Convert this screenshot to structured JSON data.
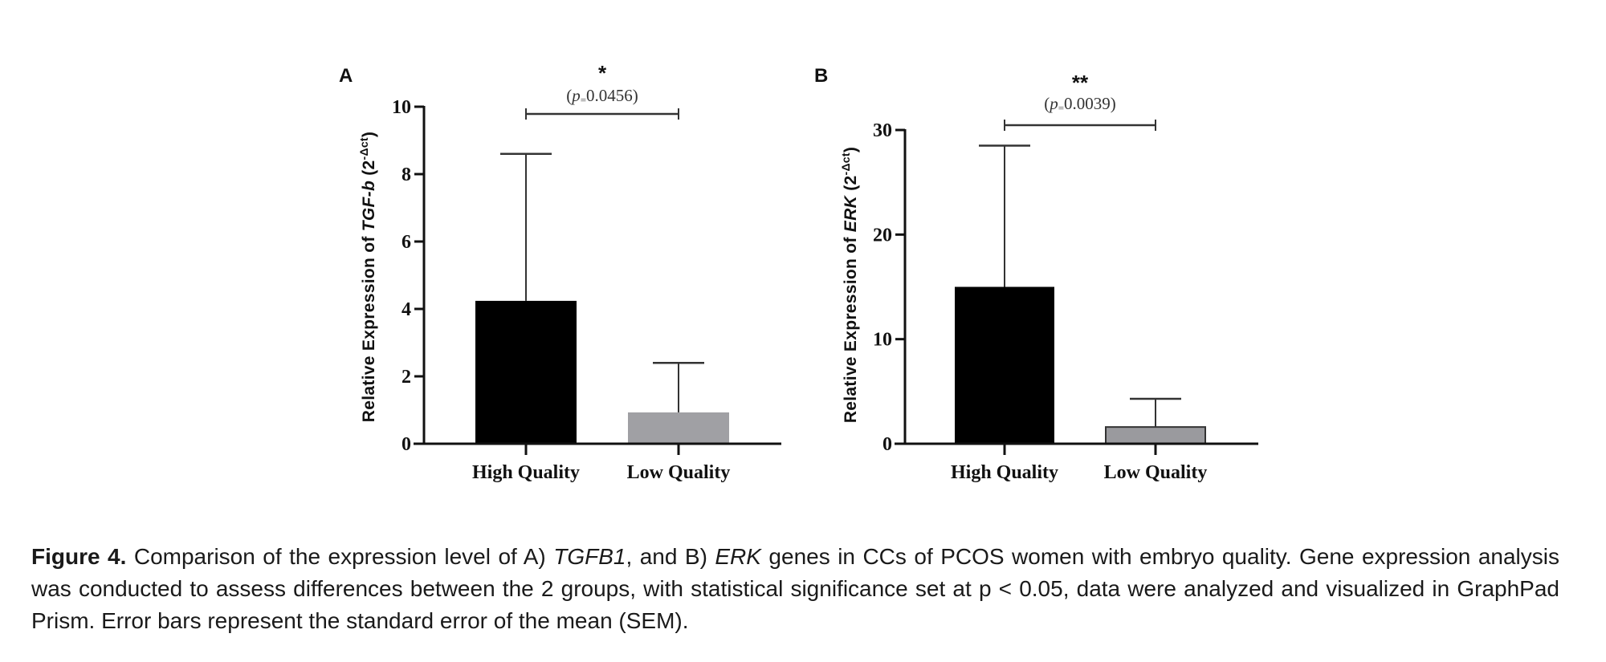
{
  "chart_data": [
    {
      "type": "bar",
      "panel": "A",
      "title": "",
      "xlabel": "",
      "ylabel": "Relative Expression of TGF-b (2^-Δct)",
      "ylabel_parts": {
        "prefix": "Relative Expression of ",
        "gene": "TGF-b",
        "open": " (2",
        "sup": "-Δct",
        "close": ")"
      },
      "categories": [
        "High Quality",
        "Low Quality"
      ],
      "values": [
        4.24,
        0.93
      ],
      "error_upper": [
        8.6,
        2.4
      ],
      "bar_colors": [
        "#000000",
        "#a0a0a4"
      ],
      "ylim": [
        0,
        10
      ],
      "yticks": [
        0,
        2,
        4,
        6,
        8,
        10
      ],
      "grid": false,
      "legend": "none",
      "significance": {
        "stars": "*",
        "p_text_prefix": "(",
        "p_symbol": "p",
        "p_eq": "=",
        "p_value": "0.0456",
        "p_text_suffix": ")"
      }
    },
    {
      "type": "bar",
      "panel": "B",
      "title": "",
      "xlabel": "",
      "ylabel": "Relative Expression of ERK (2^-Δct)",
      "ylabel_parts": {
        "prefix": "Relative Expression of ",
        "gene": "ERK",
        "open": " (2",
        "sup": "-Δct",
        "close": ")"
      },
      "categories": [
        "High Quality",
        "Low Quality"
      ],
      "values": [
        15.0,
        1.6
      ],
      "error_upper": [
        28.5,
        4.3
      ],
      "bar_colors": [
        "#000000",
        "#9a9a9e"
      ],
      "ylim": [
        0,
        30
      ],
      "yticks": [
        0,
        10,
        20,
        30
      ],
      "grid": false,
      "legend": "none",
      "significance": {
        "stars": "**",
        "p_text_prefix": "(",
        "p_symbol": "p",
        "p_eq": "=",
        "p_value": "0.0039",
        "p_text_suffix": ")"
      }
    }
  ],
  "caption": {
    "label": "Figure 4.",
    "t1": " Comparison of the expression level of A) ",
    "gene1": "TGFB1",
    "t2": ", and B) ",
    "gene2": "ERK",
    "t3": " genes in CCs of PCOS women with embryo quality. Gene expression analysis was conducted to assess differences between the 2 groups, with statistical significance set at p < 0.05, data were analyzed and visualized in GraphPad Prism. Error bars represent the standard error of the mean (SEM)."
  }
}
